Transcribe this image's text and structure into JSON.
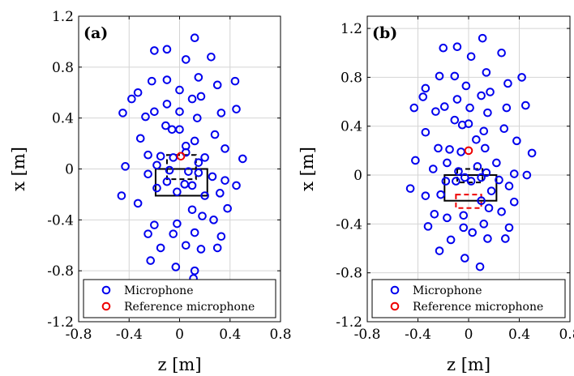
{
  "chart_data": [
    {
      "type": "scatter",
      "panel_label": "(a)",
      "xlabel": "z [m]",
      "ylabel": "x [m]",
      "xlim": [
        -0.8,
        0.8
      ],
      "ylim": [
        -1.2,
        1.2
      ],
      "xticks": [
        "-0.8",
        "-0.4",
        "0",
        "0.4",
        "0.8"
      ],
      "yticks": [
        "1.2",
        "0.8",
        "0.4",
        "0",
        "-0.4",
        "-0.8",
        "-1.2"
      ],
      "grid": true,
      "legend": {
        "position": "bottom",
        "entries": [
          "Microphone",
          "Reference microphone"
        ]
      },
      "colors": {
        "microphone": "#0000ee",
        "reference": "#ee0000",
        "box": "#000000"
      },
      "series": [
        {
          "name": "Microphone",
          "points": [
            [
              -0.2,
              0.93
            ],
            [
              -0.1,
              0.94
            ],
            [
              0.12,
              1.03
            ],
            [
              0.05,
              0.86
            ],
            [
              0.25,
              0.88
            ],
            [
              -0.33,
              0.6
            ],
            [
              -0.22,
              0.69
            ],
            [
              -0.1,
              0.7
            ],
            [
              0.0,
              0.62
            ],
            [
              0.15,
              0.72
            ],
            [
              0.3,
              0.66
            ],
            [
              0.44,
              0.69
            ],
            [
              -0.45,
              0.44
            ],
            [
              -0.38,
              0.55
            ],
            [
              -0.27,
              0.41
            ],
            [
              -0.2,
              0.45
            ],
            [
              -0.1,
              0.51
            ],
            [
              0.0,
              0.45
            ],
            [
              0.1,
              0.55
            ],
            [
              0.17,
              0.57
            ],
            [
              0.14,
              0.4
            ],
            [
              0.33,
              0.44
            ],
            [
              0.45,
              0.47
            ],
            [
              -0.31,
              0.24
            ],
            [
              -0.25,
              0.11
            ],
            [
              -0.11,
              0.34
            ],
            [
              -0.06,
              0.31
            ],
            [
              0.0,
              0.31
            ],
            [
              0.05,
              0.18
            ],
            [
              0.12,
              0.22
            ],
            [
              0.28,
              0.27
            ],
            [
              0.36,
              0.16
            ],
            [
              0.5,
              0.08
            ],
            [
              -0.15,
              0.1
            ],
            [
              -0.05,
              0.09
            ],
            [
              0.05,
              0.13
            ],
            [
              0.15,
              0.05
            ],
            [
              0.2,
              0.09
            ],
            [
              -0.43,
              0.02
            ],
            [
              -0.25,
              -0.04
            ],
            [
              -0.18,
              0.03
            ],
            [
              -0.08,
              -0.01
            ],
            [
              0.07,
              -0.02
            ],
            [
              0.15,
              -0.03
            ],
            [
              0.26,
              -0.06
            ],
            [
              0.36,
              -0.09
            ],
            [
              0.45,
              -0.13
            ],
            [
              -0.46,
              -0.21
            ],
            [
              -0.33,
              -0.27
            ],
            [
              -0.18,
              -0.15
            ],
            [
              -0.1,
              -0.1
            ],
            [
              -0.02,
              -0.18
            ],
            [
              0.04,
              -0.12
            ],
            [
              0.1,
              -0.13
            ],
            [
              0.2,
              -0.21
            ],
            [
              0.32,
              -0.19
            ],
            [
              0.38,
              -0.31
            ],
            [
              -0.2,
              -0.44
            ],
            [
              -0.02,
              -0.43
            ],
            [
              0.1,
              -0.32
            ],
            [
              0.18,
              -0.37
            ],
            [
              0.27,
              -0.4
            ],
            [
              -0.25,
              -0.51
            ],
            [
              -0.05,
              -0.51
            ],
            [
              0.12,
              -0.5
            ],
            [
              0.33,
              -0.53
            ],
            [
              -0.15,
              -0.62
            ],
            [
              0.05,
              -0.6
            ],
            [
              0.17,
              -0.63
            ],
            [
              0.3,
              -0.62
            ],
            [
              -0.23,
              -0.72
            ],
            [
              -0.03,
              -0.77
            ],
            [
              0.12,
              -0.8
            ],
            [
              0.11,
              -0.86
            ]
          ]
        },
        {
          "name": "Reference microphone",
          "points": [
            [
              0.01,
              0.1
            ]
          ]
        }
      ]
    },
    {
      "type": "scatter",
      "panel_label": "(b)",
      "xlabel": "z [m]",
      "ylabel": "x [m]",
      "xlim": [
        -0.8,
        0.8
      ],
      "ylim": [
        -1.2,
        1.3
      ],
      "xticks": [
        "-0.8",
        "-0.4",
        "0",
        "0.4",
        "0.8"
      ],
      "yticks": [
        "1.2",
        "0.8",
        "0.4",
        "0",
        "-0.4",
        "-0.8",
        "-1.2"
      ],
      "grid": true,
      "legend": {
        "position": "bottom",
        "entries": [
          "Microphone",
          "Reference microphone"
        ]
      },
      "colors": {
        "microphone": "#0000ee",
        "reference": "#ee0000",
        "box": "#000000",
        "dashed_box": "#ee0000"
      },
      "series": [
        {
          "name": "Microphone",
          "points": [
            [
              -0.2,
              1.04
            ],
            [
              -0.09,
              1.05
            ],
            [
              0.11,
              1.12
            ],
            [
              0.02,
              0.97
            ],
            [
              0.26,
              1.0
            ],
            [
              -0.34,
              0.71
            ],
            [
              -0.23,
              0.81
            ],
            [
              -0.11,
              0.81
            ],
            [
              -0.02,
              0.73
            ],
            [
              0.14,
              0.84
            ],
            [
              0.31,
              0.75
            ],
            [
              0.42,
              0.8
            ],
            [
              -0.43,
              0.55
            ],
            [
              -0.36,
              0.64
            ],
            [
              -0.26,
              0.52
            ],
            [
              -0.19,
              0.56
            ],
            [
              -0.09,
              0.62
            ],
            [
              0.01,
              0.55
            ],
            [
              0.1,
              0.65
            ],
            [
              0.17,
              0.68
            ],
            [
              0.15,
              0.51
            ],
            [
              0.3,
              0.55
            ],
            [
              0.45,
              0.57
            ],
            [
              -0.34,
              0.35
            ],
            [
              -0.24,
              0.22
            ],
            [
              -0.11,
              0.45
            ],
            [
              -0.05,
              0.41
            ],
            [
              0.0,
              0.42
            ],
            [
              0.06,
              0.29
            ],
            [
              0.12,
              0.36
            ],
            [
              0.28,
              0.38
            ],
            [
              0.38,
              0.28
            ],
            [
              0.5,
              0.18
            ],
            [
              -0.15,
              0.21
            ],
            [
              -0.06,
              0.19
            ],
            [
              0.13,
              0.22
            ],
            [
              0.22,
              0.1
            ],
            [
              -0.42,
              0.12
            ],
            [
              -0.28,
              0.05
            ],
            [
              -0.17,
              0.1
            ],
            [
              -0.08,
              0.03
            ],
            [
              0.07,
              0.07
            ],
            [
              0.14,
              0.02
            ],
            [
              0.24,
              -0.04
            ],
            [
              0.36,
              0.01
            ],
            [
              0.46,
              0.0
            ],
            [
              -0.46,
              -0.11
            ],
            [
              -0.34,
              -0.17
            ],
            [
              -0.18,
              -0.05
            ],
            [
              -0.1,
              -0.05
            ],
            [
              -0.03,
              -0.02
            ],
            [
              0.02,
              -0.05
            ],
            [
              0.1,
              -0.02
            ],
            [
              0.18,
              -0.13
            ],
            [
              0.32,
              -0.09
            ],
            [
              0.36,
              -0.22
            ],
            [
              -0.22,
              -0.16
            ],
            [
              -0.04,
              -0.33
            ],
            [
              0.1,
              -0.21
            ],
            [
              0.16,
              -0.27
            ],
            [
              0.26,
              -0.3
            ],
            [
              -0.27,
              -0.32
            ],
            [
              -0.17,
              -0.35
            ],
            [
              -0.04,
              -0.43
            ],
            [
              0.12,
              -0.4
            ],
            [
              0.32,
              -0.43
            ],
            [
              -0.32,
              -0.42
            ],
            [
              0.03,
              -0.47
            ],
            [
              0.15,
              -0.52
            ],
            [
              0.29,
              -0.52
            ],
            [
              -0.14,
              -0.53
            ],
            [
              -0.23,
              -0.62
            ],
            [
              -0.03,
              -0.68
            ],
            [
              0.09,
              -0.75
            ]
          ]
        },
        {
          "name": "Reference microphone",
          "points": [
            [
              0.0,
              0.2
            ]
          ]
        }
      ]
    }
  ]
}
